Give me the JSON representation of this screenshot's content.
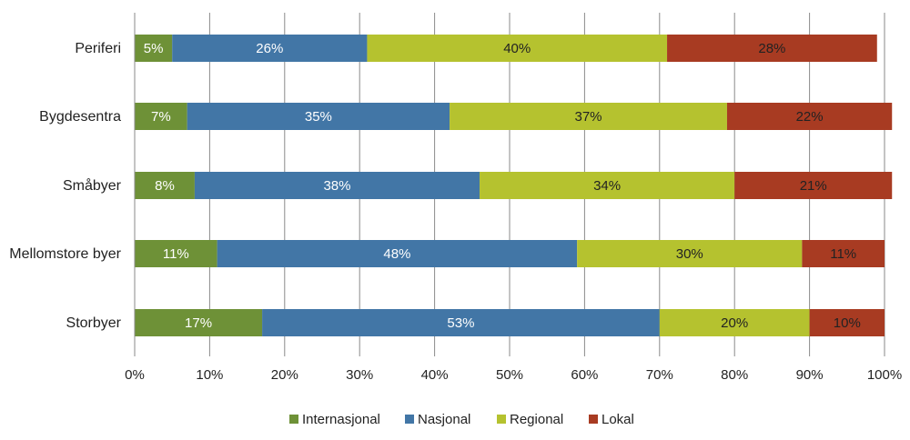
{
  "chart_data": {
    "type": "bar",
    "orientation": "horizontal",
    "stacked": "percent",
    "categories": [
      "Periferi",
      "Bygdesentra",
      "Småbyer",
      "Mellomstore byer",
      "Storbyer"
    ],
    "series": [
      {
        "name": "Internasjonal",
        "color": "#6e9137",
        "label_color": "#ffffff",
        "values": [
          5,
          7,
          8,
          11,
          17
        ],
        "labels": [
          "5%",
          "7%",
          "8%",
          "11%",
          "17%"
        ]
      },
      {
        "name": "Nasjonal",
        "color": "#4276a6",
        "label_color": "#ffffff",
        "values": [
          26,
          35,
          38,
          48,
          53
        ],
        "labels": [
          "26%",
          "35%",
          "38%",
          "48%",
          "53%"
        ]
      },
      {
        "name": "Regional",
        "color": "#b5c22f",
        "label_color": "#222222",
        "values": [
          40,
          37,
          34,
          30,
          20
        ],
        "labels": [
          "40%",
          "37%",
          "34%",
          "30%",
          "20%"
        ]
      },
      {
        "name": "Lokal",
        "color": "#a83b22",
        "label_color": "#222222",
        "values": [
          28,
          22,
          21,
          11,
          10
        ],
        "labels": [
          "28%",
          "22%",
          "21%",
          "11%",
          "10%"
        ]
      }
    ],
    "xlim": [
      0,
      100
    ],
    "x_ticks": [
      0,
      10,
      20,
      30,
      40,
      50,
      60,
      70,
      80,
      90,
      100
    ],
    "x_tick_labels": [
      "0%",
      "10%",
      "20%",
      "30%",
      "40%",
      "50%",
      "60%",
      "70%",
      "80%",
      "90%",
      "100%"
    ],
    "grid": "vertical",
    "legend_position": "bottom",
    "title": "",
    "xlabel": "",
    "ylabel": ""
  }
}
